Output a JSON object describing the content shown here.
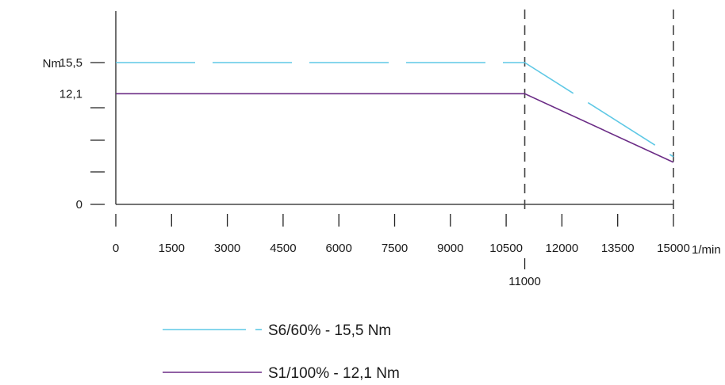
{
  "chart_data": {
    "type": "line",
    "y_unit": "Nm",
    "x_unit": "1/min",
    "x_ticks": [
      0,
      1500,
      3000,
      4500,
      6000,
      7500,
      9000,
      10500,
      12000,
      13500,
      15000
    ],
    "x_extra_tick": 11000,
    "y_tick_labels": [
      {
        "value": 15.5,
        "label": "15,5"
      },
      {
        "value": 12.1,
        "label": "12,1"
      },
      {
        "value": 0,
        "label": "0"
      }
    ],
    "y_ticks": [
      0,
      2.5,
      5,
      7.5,
      12.1,
      15.5
    ],
    "xlim": [
      0,
      15000
    ],
    "ylim": [
      0,
      20
    ],
    "vertical_reference_lines": [
      11000,
      15000
    ],
    "series": [
      {
        "name": "S6/60%  - 15,5 Nm",
        "color": "#5ec8e5",
        "dashed": true,
        "x": [
          0,
          11000,
          15000
        ],
        "y": [
          15.5,
          15.5,
          5.2
        ]
      },
      {
        "name": "S1/100% - 12,1 Nm",
        "color": "#6b2c86",
        "dashed": false,
        "x": [
          0,
          11000,
          15000
        ],
        "y": [
          12.1,
          12.1,
          4.6
        ]
      }
    ]
  }
}
